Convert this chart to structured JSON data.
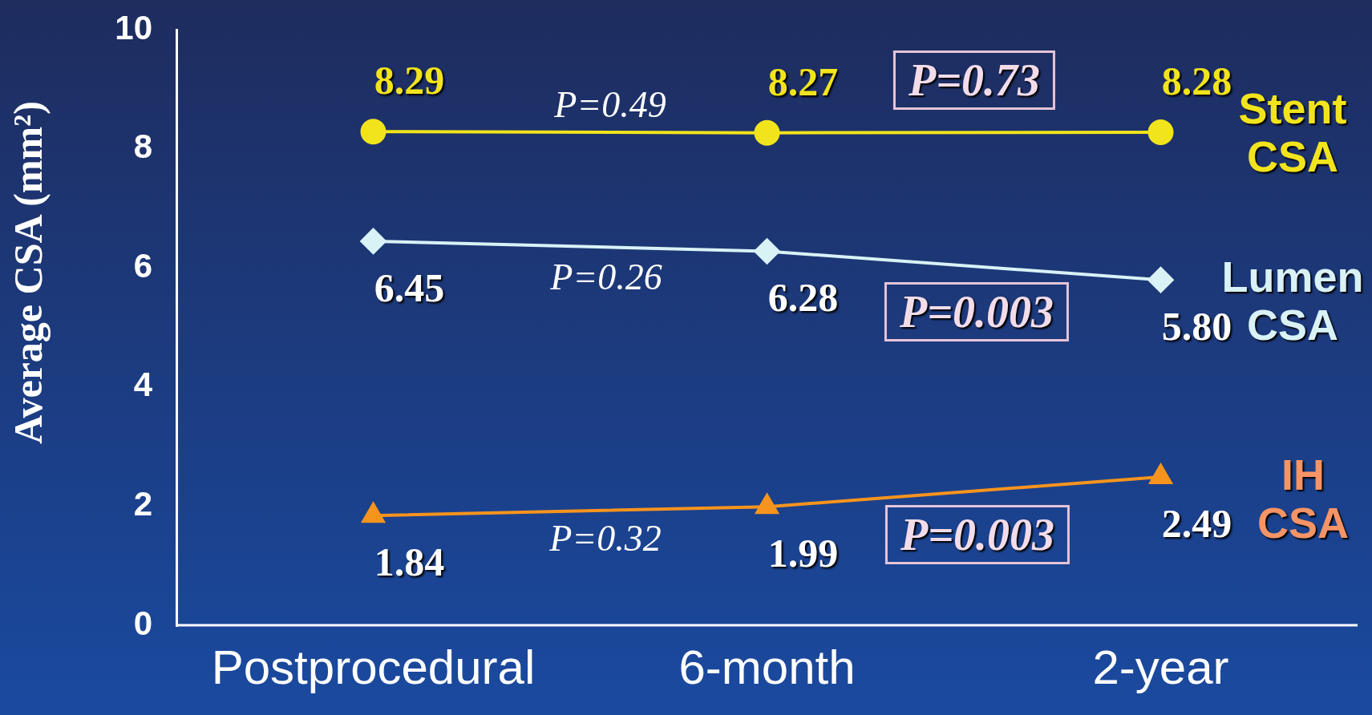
{
  "chart_data": {
    "type": "line",
    "ylabel": "Average CSA (mm²)",
    "categories": [
      "Postprocedural",
      "6-month",
      "2-year"
    ],
    "series": [
      {
        "name": "Stent CSA",
        "color": "#f2e41c",
        "marker": "circle",
        "values": [
          8.29,
          8.27,
          8.28
        ],
        "value_labels": [
          "8.29",
          "8.27",
          "8.28"
        ]
      },
      {
        "name": "Lumen CSA",
        "color": "#d8f2f6",
        "marker": "diamond",
        "values": [
          6.45,
          6.28,
          5.8
        ],
        "value_labels": [
          "6.45",
          "6.28",
          "5.80"
        ]
      },
      {
        "name": "IH CSA",
        "color": "#f7941d",
        "marker": "triangle",
        "values": [
          1.84,
          1.99,
          2.49
        ],
        "value_labels": [
          "1.84",
          "1.99",
          "2.49"
        ]
      }
    ],
    "ylim": [
      0,
      10
    ],
    "yticks": [
      0,
      2,
      4,
      6,
      8,
      10
    ],
    "grid": false,
    "legend": false,
    "annotations": [
      "P=0.49",
      "P=0.73",
      "P=0.26",
      "P=0.003",
      "P=0.32",
      "P=0.003"
    ]
  }
}
